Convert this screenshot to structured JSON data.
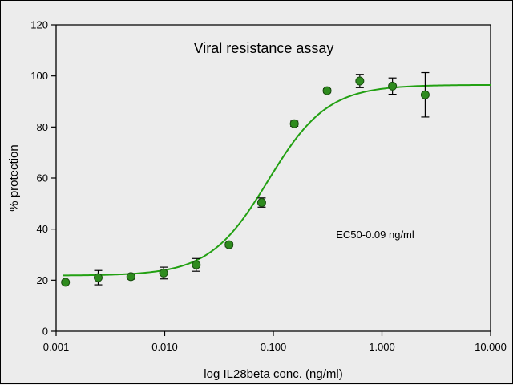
{
  "chart_data": {
    "type": "scatter",
    "title": "Viral resistance assay",
    "xlabel": "log IL28beta conc. (ng/ml)",
    "ylabel": "% protection",
    "annotation": "EC50-0.09 ng/ml",
    "x_scale": "log",
    "xlim": [
      0.001,
      10
    ],
    "ylim": [
      0,
      120
    ],
    "x_ticks": [
      0.001,
      0.01,
      0.1,
      1,
      10
    ],
    "x_tick_labels": [
      "0.001",
      "0.010",
      "0.100",
      "1.000",
      "10.000"
    ],
    "y_ticks": [
      0,
      20,
      40,
      60,
      80,
      100,
      120
    ],
    "y_tick_labels": [
      "0",
      "20",
      "40",
      "60",
      "80",
      "100",
      "120"
    ],
    "grid": false,
    "series": [
      {
        "x": [
          0.00122,
          0.00244,
          0.00488,
          0.00977,
          0.0195,
          0.0391,
          0.0781,
          0.156,
          0.3125,
          0.625,
          1.25,
          2.5
        ],
        "y": [
          19.2,
          21.0,
          21.4,
          22.8,
          26.0,
          33.9,
          50.4,
          81.3,
          94.2,
          98.0,
          96.0,
          92.6
        ],
        "err": [
          0.3,
          2.8,
          1.0,
          2.3,
          2.5,
          0.8,
          1.8,
          1.0,
          0.8,
          2.6,
          3.2,
          8.7
        ]
      }
    ],
    "fit_curve": {
      "bottom": 21.8,
      "top": 96.5,
      "ec50": 0.09,
      "hill": 1.6
    },
    "colors": {
      "marker": "#2e8b1e",
      "marker_edge": "#1a4d10",
      "curve": "#22a012",
      "axis": "#000000"
    }
  }
}
